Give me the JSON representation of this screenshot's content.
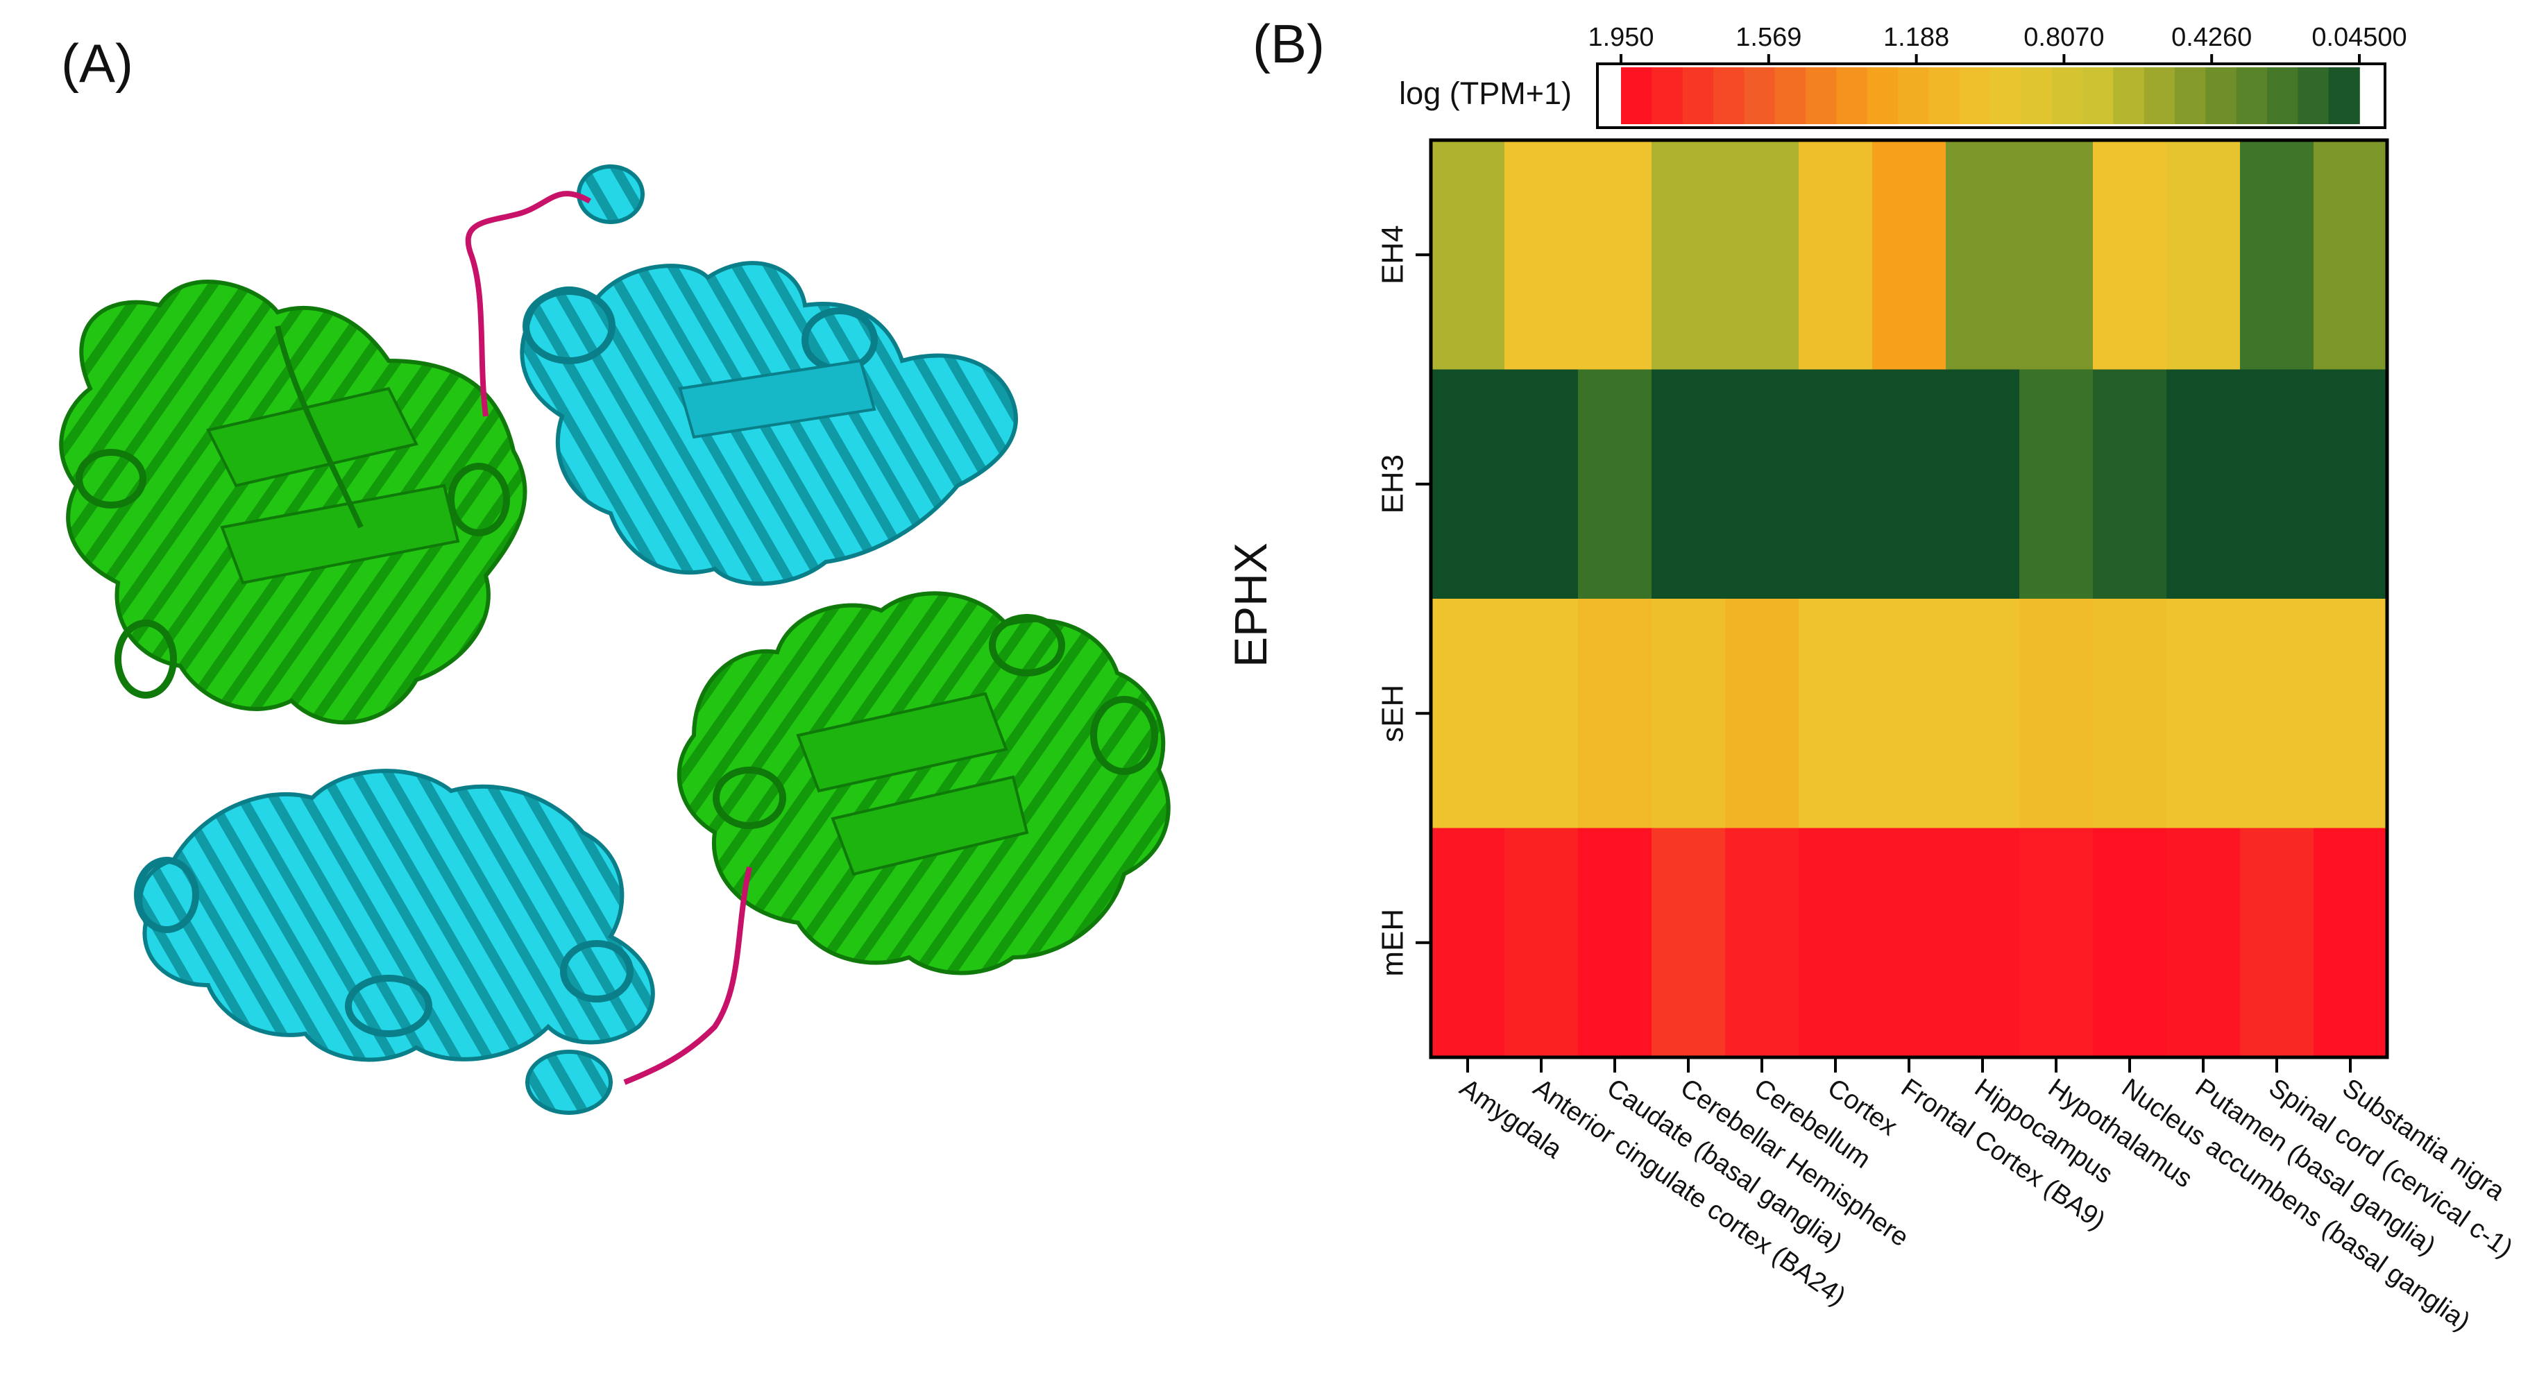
{
  "panel_a": {
    "label": "(A)",
    "colors": {
      "green": "#22c512",
      "green_dark": "#128a0a",
      "cyan": "#1fd4e4",
      "cyan_dark": "#0c8d98",
      "linker": "#c8126a"
    }
  },
  "panel_b": {
    "label": "(B)",
    "colorbar": {
      "title": "log (TPM+1)",
      "ticks": [
        "1.950",
        "1.569",
        "1.188",
        "0.8070",
        "0.4260",
        "0.04500"
      ],
      "tick_values": [
        1.95,
        1.569,
        1.188,
        0.807,
        0.426,
        0.045
      ],
      "stops": [
        {
          "value": 1.95,
          "color": "#ff0a22"
        },
        {
          "value": 1.6,
          "color": "#f25a26"
        },
        {
          "value": 1.3,
          "color": "#f6a01c"
        },
        {
          "value": 1.0,
          "color": "#eec52e"
        },
        {
          "value": 0.72,
          "color": "#cdc232"
        },
        {
          "value": 0.45,
          "color": "#7c962a"
        },
        {
          "value": 0.2,
          "color": "#3a7228"
        },
        {
          "value": 0.045,
          "color": "#0f4d28"
        }
      ]
    }
  },
  "chart_data": {
    "type": "heatmap",
    "title": "log (TPM+1)",
    "ylabel": "EPHX",
    "xlabel": "",
    "value_range": [
      0.045,
      1.95
    ],
    "rows": [
      "EH4",
      "EH3",
      "sEH",
      "mEH"
    ],
    "columns": [
      "Amygdala",
      "Anterior cingulate cortex (BA24)",
      "Caudate (basal ganglia)",
      "Cerebellar Hemisphere",
      "Cerebellum",
      "Cortex",
      "Frontal Cortex (BA9)",
      "Hippocampus",
      "Hypothalamus",
      "Nucleus accumbens (basal ganglia)",
      "Putamen (basal ganglia)",
      "Spinal cord (cervical c-1)",
      "Substantia nigra"
    ],
    "values": [
      [
        0.62,
        1.02,
        1.02,
        0.62,
        0.62,
        1.05,
        1.3,
        0.45,
        0.45,
        1.02,
        0.92,
        0.22,
        0.45
      ],
      [
        0.05,
        0.05,
        0.2,
        0.05,
        0.05,
        0.05,
        0.05,
        0.05,
        0.2,
        0.12,
        0.05,
        0.05,
        0.05
      ],
      [
        1.02,
        1.02,
        1.1,
        1.05,
        1.15,
        1.02,
        1.02,
        1.02,
        1.07,
        1.05,
        1.02,
        1.02,
        1.02
      ],
      [
        1.9,
        1.85,
        1.92,
        1.75,
        1.86,
        1.9,
        1.9,
        1.9,
        1.88,
        1.92,
        1.9,
        1.82,
        1.92
      ]
    ]
  }
}
